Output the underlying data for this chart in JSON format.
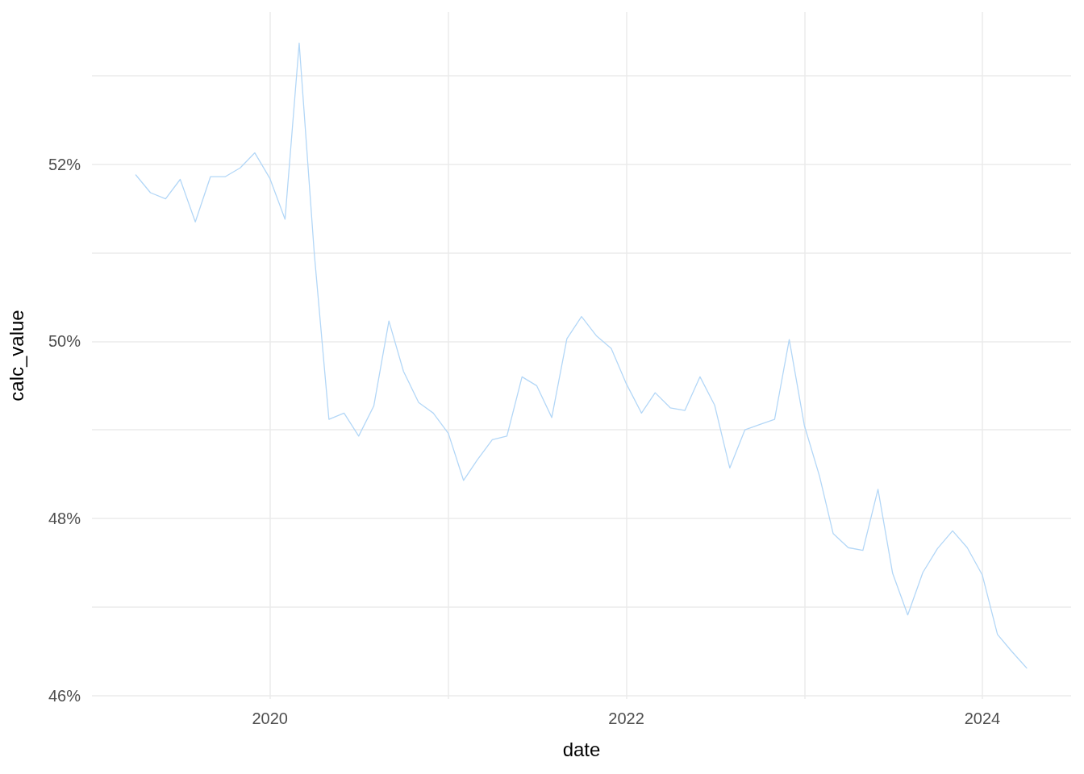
{
  "chart_data": {
    "type": "line",
    "xlabel": "date",
    "ylabel": "calc_value",
    "x": [
      "2019-04",
      "2019-05",
      "2019-06",
      "2019-07",
      "2019-08",
      "2019-09",
      "2019-10",
      "2019-11",
      "2019-12",
      "2020-01",
      "2020-02",
      "2020-03",
      "2020-04",
      "2020-05",
      "2020-06",
      "2020-07",
      "2020-08",
      "2020-09",
      "2020-10",
      "2020-11",
      "2020-12",
      "2021-01",
      "2021-02",
      "2021-03",
      "2021-04",
      "2021-05",
      "2021-06",
      "2021-07",
      "2021-08",
      "2021-09",
      "2021-10",
      "2021-11",
      "2021-12",
      "2022-01",
      "2022-02",
      "2022-03",
      "2022-04",
      "2022-05",
      "2022-06",
      "2022-07",
      "2022-08",
      "2022-09",
      "2022-10",
      "2022-11",
      "2022-12",
      "2023-01",
      "2023-02",
      "2023-03",
      "2023-04",
      "2023-05",
      "2023-06",
      "2023-07",
      "2023-08",
      "2023-09",
      "2023-10",
      "2023-11",
      "2023-12",
      "2024-01",
      "2024-02",
      "2024-03",
      "2024-04"
    ],
    "series": [
      {
        "color": "#b3d7f7",
        "values": [
          51.88,
          51.68,
          51.61,
          51.83,
          51.35,
          51.86,
          51.86,
          51.96,
          52.13,
          51.84,
          51.38,
          53.37,
          50.99,
          49.12,
          49.19,
          48.93,
          49.27,
          50.23,
          49.66,
          49.31,
          49.19,
          48.96,
          48.43,
          48.66,
          48.89,
          48.93,
          49.6,
          49.5,
          49.14,
          50.03,
          50.28,
          50.06,
          49.92,
          49.52,
          49.19,
          49.42,
          49.25,
          49.22,
          49.6,
          49.28,
          48.57,
          49.0,
          49.06,
          49.12,
          50.02,
          49.05,
          48.48,
          47.83,
          47.67,
          47.64,
          48.33,
          47.38,
          46.91,
          47.39,
          47.66,
          47.86,
          47.67,
          47.36,
          46.69,
          46.5,
          46.31
        ]
      }
    ],
    "xlim": [
      "2019-01-01",
      "2024-07-01"
    ],
    "xticks": [
      {
        "value": "2020",
        "label": "2020"
      },
      {
        "value": "2021",
        "label": null
      },
      {
        "value": "2022",
        "label": "2022"
      },
      {
        "value": "2023",
        "label": null
      },
      {
        "value": "2024",
        "label": "2024"
      }
    ],
    "ylim": [
      45.96,
      53.72
    ],
    "yticks": [
      {
        "value": 46,
        "label": "46%"
      },
      {
        "value": 47,
        "label": null
      },
      {
        "value": 48,
        "label": "48%"
      },
      {
        "value": 49,
        "label": null
      },
      {
        "value": 50,
        "label": "50%"
      },
      {
        "value": 51,
        "label": null
      },
      {
        "value": 52,
        "label": "52%"
      },
      {
        "value": 53,
        "label": null
      }
    ],
    "grid": true,
    "marker": "none",
    "line_style": "solid"
  }
}
